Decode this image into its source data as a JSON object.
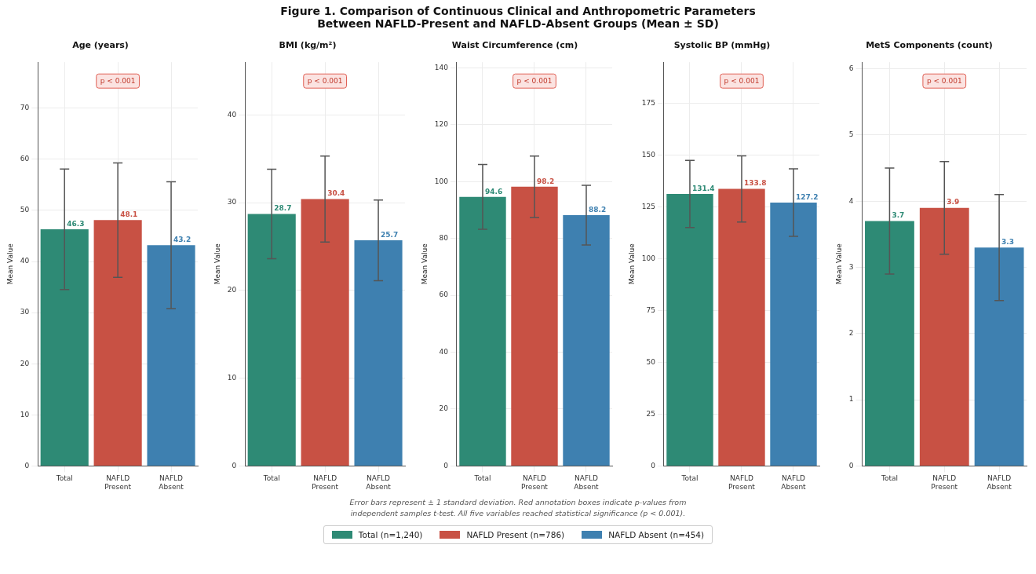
{
  "chart_data": [
    {
      "type": "other",
      "title": "Figure 1. Comparison of Continuous Clinical and Anthropometric Parameters",
      "subtitle": "Between NAFLD-Present and NAFLD-Absent Groups (Mean ± SD)"
    },
    {
      "type": "bar",
      "title": "Age (years)",
      "ylabel": "Mean Value",
      "categories": [
        "Total",
        "NAFLD Present",
        "NAFLD Absent"
      ],
      "legend": "bottom",
      "grid": true,
      "data_labels": true,
      "ylim": [
        0,
        79
      ],
      "yticks": [
        0,
        10,
        20,
        30,
        40,
        50,
        60,
        70
      ],
      "annotations": [
        "p < 0.001"
      ],
      "series": [
        {
          "name": "Total (n=1,240)",
          "color": "#2e8a75",
          "values": [
            46.3,
            null,
            null
          ],
          "errors": [
            11.8,
            null,
            null
          ]
        },
        {
          "name": "NAFLD Present (n=786)",
          "color": "#c85144",
          "values": [
            null,
            48.1,
            null
          ],
          "errors": [
            null,
            11.2,
            null
          ]
        },
        {
          "name": "NAFLD Absent (n=454)",
          "color": "#3e80b0",
          "values": [
            null,
            null,
            43.2
          ],
          "errors": [
            null,
            null,
            12.4
          ]
        }
      ]
    },
    {
      "type": "bar",
      "title": "BMI (kg/m²)",
      "ylabel": "Mean Value",
      "categories": [
        "Total",
        "NAFLD Present",
        "NAFLD Absent"
      ],
      "grid": true,
      "data_labels": true,
      "ylim": [
        0,
        46
      ],
      "yticks": [
        0,
        10,
        20,
        30,
        40
      ],
      "annotations": [
        "p < 0.001"
      ],
      "series": [
        {
          "color": "#2e8a75",
          "values": [
            28.7,
            null,
            null
          ],
          "errors": [
            5.1,
            null,
            null
          ]
        },
        {
          "color": "#c85144",
          "values": [
            null,
            30.4,
            null
          ],
          "errors": [
            null,
            4.9,
            null
          ]
        },
        {
          "color": "#3e80b0",
          "values": [
            null,
            null,
            25.7
          ],
          "errors": [
            null,
            null,
            4.6
          ]
        }
      ]
    },
    {
      "type": "bar",
      "title": "Waist Circumference (cm)",
      "ylabel": "Mean Value",
      "categories": [
        "Total",
        "NAFLD Present",
        "NAFLD Absent"
      ],
      "grid": true,
      "data_labels": true,
      "ylim": [
        0,
        142
      ],
      "yticks": [
        0,
        20,
        40,
        60,
        80,
        100,
        120,
        140
      ],
      "annotations": [
        "p < 0.001"
      ],
      "series": [
        {
          "color": "#2e8a75",
          "values": [
            94.6,
            null,
            null
          ],
          "errors": [
            11.4,
            null,
            null
          ]
        },
        {
          "color": "#c85144",
          "values": [
            null,
            98.2,
            null
          ],
          "errors": [
            null,
            10.8,
            null
          ]
        },
        {
          "color": "#3e80b0",
          "values": [
            null,
            null,
            88.2
          ],
          "errors": [
            null,
            null,
            10.5
          ]
        }
      ]
    },
    {
      "type": "bar",
      "title": "Systolic BP (mmHg)",
      "ylabel": "Mean Value",
      "categories": [
        "Total",
        "NAFLD Present",
        "NAFLD Absent"
      ],
      "grid": true,
      "data_labels": true,
      "ylim": [
        0,
        195
      ],
      "yticks": [
        0,
        25,
        50,
        75,
        100,
        125,
        150,
        175
      ],
      "annotations": [
        "p < 0.001"
      ],
      "series": [
        {
          "color": "#2e8a75",
          "values": [
            131.4,
            null,
            null
          ],
          "errors": [
            16.2,
            null,
            null
          ]
        },
        {
          "color": "#c85144",
          "values": [
            null,
            133.8,
            null
          ],
          "errors": [
            null,
            16,
            null
          ]
        },
        {
          "color": "#3e80b0",
          "values": [
            null,
            null,
            127.2
          ],
          "errors": [
            null,
            null,
            16.3
          ]
        }
      ]
    },
    {
      "type": "bar",
      "title": "MetS Components (count)",
      "ylabel": "Mean Value",
      "categories": [
        "Total",
        "NAFLD Present",
        "NAFLD Absent"
      ],
      "grid": true,
      "data_labels": true,
      "ylim": [
        0,
        6.1
      ],
      "yticks": [
        0,
        1,
        2,
        3,
        4,
        5,
        6
      ],
      "annotations": [
        "p < 0.001"
      ],
      "series": [
        {
          "color": "#2e8a75",
          "values": [
            3.7,
            null,
            null
          ],
          "errors": [
            0.8,
            null,
            null
          ]
        },
        {
          "color": "#c85144",
          "values": [
            null,
            3.9,
            null
          ],
          "errors": [
            null,
            0.7,
            null
          ]
        },
        {
          "color": "#3e80b0",
          "values": [
            null,
            null,
            3.3
          ],
          "errors": [
            null,
            null,
            0.8
          ]
        }
      ]
    },
    {
      "type": "other",
      "annotations": [
        "Error bars represent ± 1 standard deviation. Red annotation boxes indicate p-values from independent samples t-test. All five variables reached statistical significance (p < 0.001)."
      ]
    }
  ]
}
